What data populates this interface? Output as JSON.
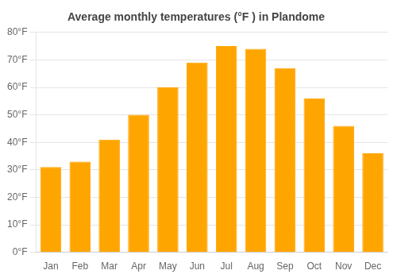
{
  "chart_data": {
    "type": "bar",
    "title": "Average monthly temperatures (°F ) in Plandome",
    "categories": [
      "Jan",
      "Feb",
      "Mar",
      "Apr",
      "May",
      "Jun",
      "Jul",
      "Aug",
      "Sep",
      "Oct",
      "Nov",
      "Dec"
    ],
    "values": [
      31,
      33,
      41,
      50,
      60,
      69,
      75,
      74,
      67,
      56,
      46,
      36
    ],
    "color": "#FFA500",
    "ylim": [
      0,
      80
    ],
    "yticks": [
      {
        "value": 0,
        "label": "0°F"
      },
      {
        "value": 10,
        "label": "10°F"
      },
      {
        "value": 20,
        "label": "20°F"
      },
      {
        "value": 30,
        "label": "30°F"
      },
      {
        "value": 40,
        "label": "40°F"
      },
      {
        "value": 50,
        "label": "50°F"
      },
      {
        "value": 60,
        "label": "60°F"
      },
      {
        "value": 70,
        "label": "70°F"
      },
      {
        "value": 80,
        "label": "80°F"
      }
    ],
    "grid": true
  }
}
